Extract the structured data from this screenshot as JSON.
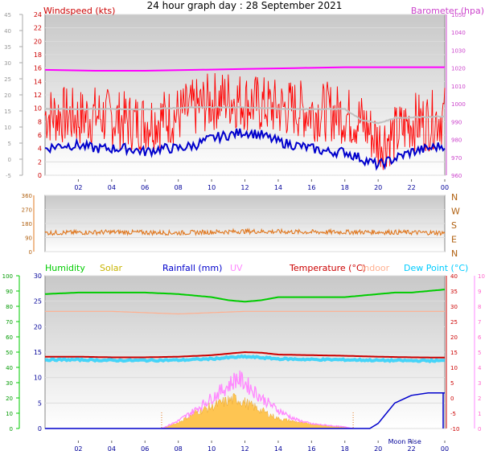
{
  "chart_data": [
    {
      "id": "wind_baro",
      "type": "line",
      "title": "24 hour graph day : 28 September 2021",
      "left_label": "Windspeed (kts)",
      "right_label": "Barometer (hpa)",
      "x_ticks": [
        "02",
        "04",
        "06",
        "08",
        "10",
        "12",
        "14",
        "16",
        "18",
        "20",
        "22",
        "00"
      ],
      "y_left_range": [
        0,
        24
      ],
      "y_left_ticks": [
        0,
        2,
        4,
        6,
        8,
        10,
        12,
        14,
        16,
        18,
        20,
        22,
        24
      ],
      "y_outer_range": [
        -5,
        45
      ],
      "y_outer_ticks": [
        -5,
        0,
        5,
        10,
        15,
        20,
        25,
        30,
        35,
        40,
        45
      ],
      "y_right_range": [
        960,
        1050
      ],
      "y_right_ticks": [
        960,
        970,
        980,
        990,
        1000,
        1010,
        1020,
        1030,
        1040,
        1050
      ],
      "series": [
        {
          "key": "gust",
          "color": "#ff0000",
          "x": [
            0,
            1,
            2,
            3,
            4,
            5,
            6,
            7,
            8,
            9,
            10,
            11,
            12,
            13,
            14,
            15,
            16,
            17,
            18,
            19,
            20,
            21,
            22,
            23,
            24
          ],
          "values": [
            9,
            9,
            8.5,
            9,
            8.5,
            8,
            8,
            8.5,
            9,
            10,
            11,
            11.5,
            11,
            10.5,
            10,
            10,
            9.5,
            9.5,
            9,
            8,
            5,
            6,
            8,
            8,
            9
          ]
        },
        {
          "key": "avg",
          "color": "#0000cc",
          "x": [
            0,
            1,
            2,
            3,
            4,
            5,
            6,
            7,
            8,
            9,
            10,
            11,
            12,
            13,
            14,
            15,
            16,
            17,
            18,
            19,
            20,
            21,
            22,
            23,
            24
          ],
          "values": [
            4,
            4.5,
            4.5,
            4,
            4,
            4,
            3.5,
            4,
            4,
            4.5,
            5.5,
            6,
            6.5,
            6,
            5,
            4.5,
            4,
            3.5,
            3.5,
            2.5,
            1.5,
            2.5,
            3.5,
            4,
            4.5
          ]
        },
        {
          "key": "pressure",
          "color": "#ff00ff",
          "x": [
            0,
            3,
            6,
            9,
            12,
            15,
            18,
            21,
            24
          ],
          "values": [
            1019,
            1018.5,
            1018.5,
            1019,
            1019.5,
            1020,
            1020.5,
            1020.5,
            1020.5
          ]
        },
        {
          "key": "pressure_trend",
          "color": "#c0c0c0",
          "x": [
            0,
            3,
            6,
            9,
            12,
            15,
            18,
            19,
            20,
            21,
            24
          ],
          "values": [
            997,
            997,
            997,
            998,
            998,
            997,
            997,
            991,
            989,
            992,
            993
          ]
        }
      ]
    },
    {
      "id": "wind_dir",
      "type": "line",
      "x_ticks": [],
      "y_left_range": [
        0,
        360
      ],
      "y_left_ticks": [
        0,
        90,
        180,
        270,
        360
      ],
      "y_right_ticks": [
        "N",
        "E",
        "S",
        "W",
        "N"
      ],
      "series": [
        {
          "key": "direction",
          "color": "#e07820",
          "x": [
            0,
            4,
            8,
            12,
            16,
            20,
            24
          ],
          "values": [
            120,
            125,
            120,
            130,
            125,
            125,
            120
          ]
        }
      ]
    },
    {
      "id": "temp_hum",
      "type": "area",
      "x_ticks": [
        "02",
        "04",
        "06",
        "08",
        "10",
        "12",
        "14",
        "16",
        "18",
        "20",
        "22",
        "00"
      ],
      "legend": [
        {
          "label": "Humidity",
          "color": "#00cc00"
        },
        {
          "label": "Solar",
          "color": "#c8b400"
        },
        {
          "label": "Rainfall (mm)",
          "color": "#0000cc"
        },
        {
          "label": "UV",
          "color": "#ff88ff"
        },
        {
          "label": "Temperature (°C)",
          "color": "#cc0000"
        },
        {
          "label": "Indoor",
          "color": "#ffb090"
        },
        {
          "label": "Dew Point (°C)",
          "color": "#00ccff"
        }
      ],
      "annotation": "Moon Rise",
      "y_humidity_range": [
        0,
        100
      ],
      "y_humidity_ticks": [
        0,
        10,
        20,
        30,
        40,
        50,
        60,
        70,
        80,
        90,
        100
      ],
      "y_inner_range": [
        0,
        30
      ],
      "y_inner_ticks": [
        0,
        5,
        10,
        15,
        20,
        25,
        30
      ],
      "y_temp_range": [
        -10,
        40
      ],
      "y_temp_ticks": [
        -10,
        -5,
        0,
        5,
        10,
        15,
        20,
        25,
        30,
        35,
        40
      ],
      "y_uv_range": [
        0,
        10
      ],
      "y_uv_ticks": [
        0,
        1,
        2,
        3,
        4,
        5,
        6,
        7,
        8,
        9,
        10
      ],
      "series": [
        {
          "key": "humidity",
          "color": "#00cc00",
          "x": [
            0,
            2,
            4,
            6,
            8,
            10,
            11,
            12,
            13,
            14,
            16,
            18,
            19,
            20,
            21,
            22,
            23,
            24
          ],
          "values": [
            88,
            89,
            89,
            89,
            88,
            86,
            84,
            83,
            84,
            86,
            86,
            86,
            87,
            88,
            89,
            89,
            90,
            91
          ]
        },
        {
          "key": "indoor",
          "color": "#ffb090",
          "x": [
            0,
            4,
            8,
            12,
            16,
            20,
            24
          ],
          "values": [
            23,
            23,
            22.5,
            23,
            23,
            23,
            23
          ]
        },
        {
          "key": "temperature",
          "color": "#cc0000",
          "x": [
            0,
            2,
            4,
            6,
            8,
            10,
            11,
            12,
            13,
            14,
            16,
            18,
            20,
            22,
            24
          ],
          "values": [
            13.5,
            13.5,
            13.3,
            13.3,
            13.5,
            14,
            14.5,
            15,
            14.8,
            14.2,
            14,
            13.8,
            13.5,
            13.3,
            13.2
          ]
        },
        {
          "key": "dewpoint",
          "color": "#00ccff",
          "x": [
            0,
            2,
            4,
            6,
            8,
            10,
            11,
            12,
            13,
            14,
            16,
            18,
            20,
            22,
            24
          ],
          "values": [
            12.5,
            12.5,
            12.3,
            12.3,
            12.4,
            12.8,
            13.2,
            13.5,
            13.2,
            12.8,
            12.6,
            12.5,
            12.3,
            12.2,
            12.2
          ]
        },
        {
          "key": "solar",
          "color": "#ffc040",
          "x": [
            0,
            7,
            8,
            9,
            10,
            11,
            11.5,
            12,
            13,
            14,
            15,
            16,
            17,
            18,
            18.5,
            24
          ],
          "values": [
            0,
            0,
            300,
            800,
            1100,
            1400,
            1500,
            1300,
            900,
            500,
            350,
            250,
            150,
            50,
            0,
            0
          ]
        },
        {
          "key": "uv",
          "color": "#ff88ff",
          "x": [
            0,
            7,
            8,
            9,
            10,
            11,
            11.5,
            12,
            13,
            14,
            15,
            16,
            17,
            18,
            18.5,
            24
          ],
          "values": [
            0,
            0,
            0.5,
            1.2,
            2,
            2.8,
            3.3,
            3,
            2,
            1.2,
            0.6,
            0.3,
            0.2,
            0.1,
            0,
            0
          ]
        },
        {
          "key": "rainfall",
          "color": "#0000cc",
          "x": [
            0,
            19.5,
            20,
            20.5,
            21,
            22,
            23,
            24
          ],
          "values": [
            0,
            0,
            1,
            3,
            5,
            6.5,
            7,
            7
          ]
        }
      ]
    }
  ]
}
